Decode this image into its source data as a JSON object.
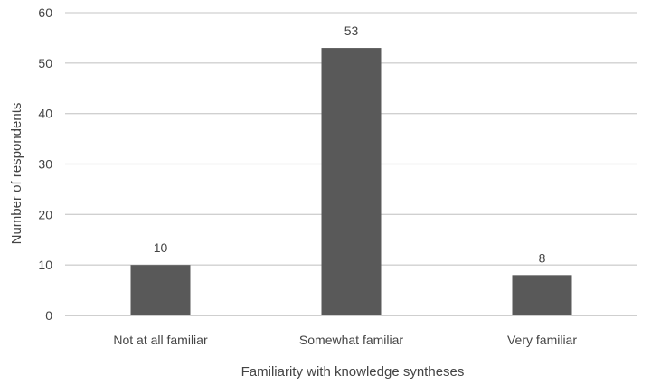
{
  "chart_data": {
    "type": "bar",
    "categories": [
      "Not at all familiar",
      "Somewhat familiar",
      "Very familiar"
    ],
    "values": [
      10,
      53,
      8
    ],
    "title": "",
    "xlabel": "Familiarity with knowledge syntheses",
    "ylabel": "Number of respondents",
    "ylim": [
      0,
      60
    ],
    "yticks": [
      0,
      10,
      20,
      30,
      40,
      50,
      60
    ],
    "grid": true,
    "legend": "none",
    "data_labels": true,
    "bar_color": "#595959"
  }
}
